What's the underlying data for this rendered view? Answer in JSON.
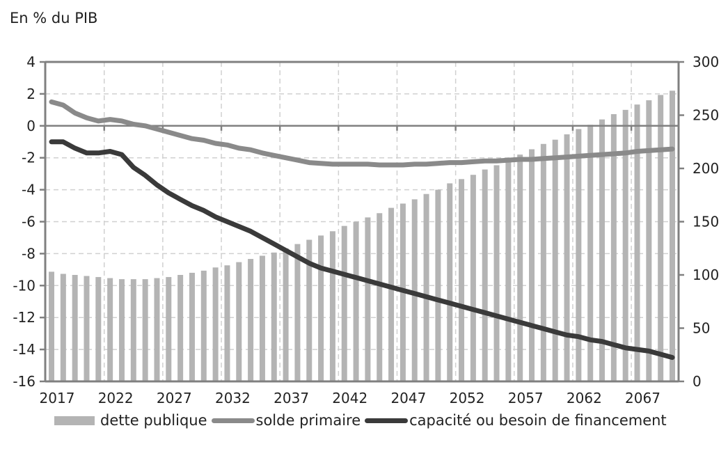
{
  "chart": {
    "unit_label": "En % du PIB",
    "colors": {
      "bars": "#b4b4b4",
      "solde_primaire": "#8a8a8a",
      "capacite": "#3a3a3a",
      "axis": "#808080",
      "grid": "#d0d0d0"
    }
  },
  "legend": [
    {
      "label": "dette publique"
    },
    {
      "label": "solde primaire"
    },
    {
      "label": "capacité ou besoin de financement"
    }
  ],
  "chart_data": {
    "type": "bar+line",
    "title": "",
    "subtitle": "En % du PIB",
    "xlabel": "",
    "ylabel_left": "En % du PIB",
    "ylabel_right": "",
    "ylim_left": [
      -16,
      4
    ],
    "ylim_right": [
      0,
      300
    ],
    "yticks_left": [
      4,
      2,
      0,
      -2,
      -4,
      -6,
      -8,
      -10,
      -12,
      -14,
      -16
    ],
    "yticks_right": [
      300,
      250,
      200,
      150,
      100,
      50,
      0
    ],
    "xtick_labels": [
      "2017",
      "2022",
      "2027",
      "2032",
      "2037",
      "2042",
      "2047",
      "2052",
      "2057",
      "2062",
      "2067"
    ],
    "grid": true,
    "legend_position": "bottom",
    "x": [
      2017,
      2018,
      2019,
      2020,
      2021,
      2022,
      2023,
      2024,
      2025,
      2026,
      2027,
      2028,
      2029,
      2030,
      2031,
      2032,
      2033,
      2034,
      2035,
      2036,
      2037,
      2038,
      2039,
      2040,
      2041,
      2042,
      2043,
      2044,
      2045,
      2046,
      2047,
      2048,
      2049,
      2050,
      2051,
      2052,
      2053,
      2054,
      2055,
      2056,
      2057,
      2058,
      2059,
      2060,
      2061,
      2062,
      2063,
      2064,
      2065,
      2066,
      2067,
      2068,
      2069,
      2070
    ],
    "series": [
      {
        "name": "dette publique",
        "type": "bar",
        "axis": "right",
        "values": [
          103,
          101,
          100,
          99,
          98,
          97,
          96,
          96,
          96,
          97,
          98,
          100,
          102,
          104,
          107,
          109,
          112,
          115,
          118,
          121,
          125,
          129,
          133,
          137,
          141,
          146,
          150,
          154,
          158,
          163,
          167,
          171,
          176,
          180,
          186,
          190,
          194,
          199,
          203,
          208,
          213,
          218,
          223,
          227,
          232,
          237,
          241,
          246,
          251,
          255,
          260,
          264,
          269,
          273
        ]
      },
      {
        "name": "solde primaire",
        "type": "line",
        "axis": "left",
        "values": [
          1.5,
          1.3,
          0.8,
          0.5,
          0.3,
          0.4,
          0.3,
          0.1,
          0.0,
          -0.2,
          -0.4,
          -0.6,
          -0.8,
          -0.9,
          -1.1,
          -1.2,
          -1.4,
          -1.5,
          -1.7,
          -1.85,
          -2.0,
          -2.15,
          -2.3,
          -2.35,
          -2.4,
          -2.4,
          -2.4,
          -2.4,
          -2.45,
          -2.45,
          -2.45,
          -2.4,
          -2.4,
          -2.35,
          -2.3,
          -2.3,
          -2.25,
          -2.2,
          -2.2,
          -2.15,
          -2.1,
          -2.1,
          -2.05,
          -2.0,
          -1.95,
          -1.9,
          -1.85,
          -1.8,
          -1.75,
          -1.7,
          -1.6,
          -1.55,
          -1.5,
          -1.45
        ]
      },
      {
        "name": "capacité ou besoin de financement",
        "type": "line",
        "axis": "left",
        "values": [
          -1.0,
          -1.0,
          -1.4,
          -1.7,
          -1.7,
          -1.6,
          -1.8,
          -2.6,
          -3.1,
          -3.7,
          -4.2,
          -4.6,
          -5.0,
          -5.3,
          -5.7,
          -6.0,
          -6.3,
          -6.6,
          -7.0,
          -7.4,
          -7.8,
          -8.2,
          -8.6,
          -8.9,
          -9.1,
          -9.3,
          -9.5,
          -9.7,
          -9.9,
          -10.1,
          -10.3,
          -10.5,
          -10.7,
          -10.9,
          -11.1,
          -11.3,
          -11.5,
          -11.7,
          -11.9,
          -12.1,
          -12.3,
          -12.5,
          -12.7,
          -12.9,
          -13.1,
          -13.2,
          -13.4,
          -13.5,
          -13.7,
          -13.9,
          -14.0,
          -14.1,
          -14.3,
          -14.5
        ]
      }
    ]
  }
}
